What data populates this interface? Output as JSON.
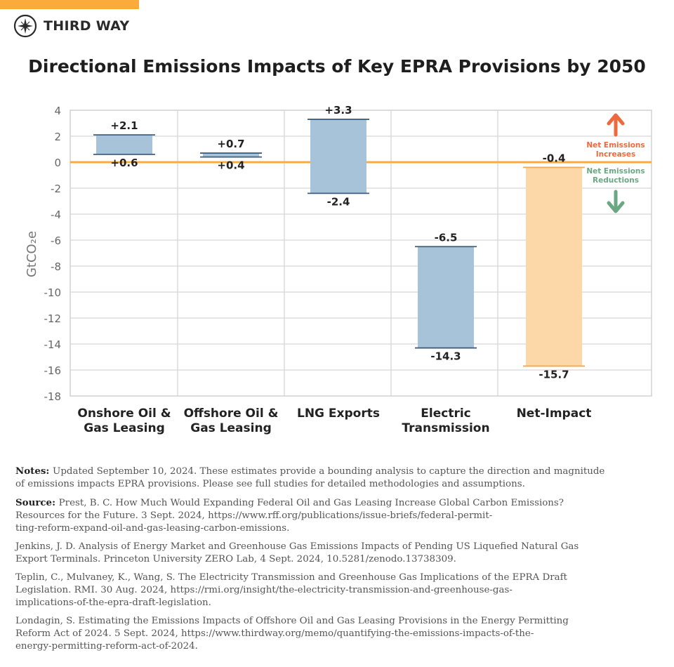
{
  "brand": {
    "name": "THIRD WAY",
    "accent": "#fbab3b",
    "icon": "compass-icon"
  },
  "title": "Directional Emissions Impacts of Key EPRA Provisions by 2050",
  "chart_data": {
    "type": "floating-bar",
    "title": "Directional Emissions Impacts of Key EPRA Provisions by 2050",
    "ylabel": "GtCO₂e",
    "ylim": [
      -18,
      4
    ],
    "yticks": [
      4,
      2,
      0,
      -2,
      -4,
      -6,
      -8,
      -10,
      -12,
      -14,
      -16,
      -18
    ],
    "grid": true,
    "categories": [
      {
        "label": [
          "Onshore Oil &",
          "Gas Leasing"
        ],
        "low": 0.6,
        "high": 2.1,
        "low_label": "+0.6",
        "high_label": "+2.1",
        "color": "#a7c3d9"
      },
      {
        "label": [
          "Offshore Oil &",
          "Gas Leasing"
        ],
        "low": 0.4,
        "high": 0.7,
        "low_label": "+0.4",
        "high_label": "+0.7",
        "color": "#a7c3d9"
      },
      {
        "label": [
          "LNG Exports"
        ],
        "low": -2.4,
        "high": 3.3,
        "low_label": "-2.4",
        "high_label": "+3.3",
        "color": "#a7c3d9"
      },
      {
        "label": [
          "Electric",
          "Transmission"
        ],
        "low": -14.3,
        "high": -6.5,
        "low_label": "-14.3",
        "high_label": "-6.5",
        "color": "#a7c3d9"
      },
      {
        "label": [
          "Net-Impact"
        ],
        "low": -15.7,
        "high": -0.4,
        "low_label": "-15.7",
        "high_label": "-0.4",
        "color": "#fcd7a8"
      }
    ],
    "zero_line_color": "#fbab3b",
    "annotations": {
      "increase": {
        "lines": [
          "Net Emissions",
          "Increases"
        ],
        "color": "#ec6a3c",
        "icon": "arrow-up-icon"
      },
      "reduction": {
        "lines": [
          "Net Emissions",
          "Reductions"
        ],
        "color": "#6aa884",
        "icon": "arrow-down-icon"
      }
    }
  },
  "notes": [
    {
      "label": "Notes:",
      "lines": [
        "Updated September 10, 2024. These estimates provide a bounding analysis to capture the direction and magnitude",
        "of emissions impacts EPRA provisions. Please see full studies for detailed methodologies and assumptions."
      ]
    },
    {
      "label": "Source:",
      "lines": [
        "Prest, B. C. How Much Would Expanding Federal Oil and Gas Leasing Increase Global Carbon Emissions?",
        "Resources for the Future. 3 Sept. 2024, https://www.rff.org/publications/issue-briefs/federal-permit-",
        "ting-reform-expand-oil-and-gas-leasing-carbon-emissions."
      ]
    },
    {
      "label": "",
      "lines": [
        "Jenkins, J. D. Analysis of Energy Market and Greenhouse Gas Emissions Impacts of Pending US Liquefied Natural Gas",
        "Export Terminals. Princeton University ZERO Lab, 4 Sept. 2024, 10.5281/zenodo.13738309."
      ]
    },
    {
      "label": "",
      "lines": [
        "Teplin, C., Mulvaney, K., Wang, S. The Electricity Transmission and Greenhouse Gas Implications of the EPRA Draft",
        "Legislation. RMI. 30 Aug. 2024, https://rmi.org/insight/the-electricity-transmission-and-greenhouse-gas-",
        "implications-of-the-epra-draft-legislation."
      ]
    },
    {
      "label": "",
      "lines": [
        "Londagin, S. Estimating the Emissions Impacts of Offshore Oil and Gas Leasing Provisions in the Energy Permitting",
        "Reform Act of 2024. 5 Sept. 2024, https://www.thirdway.org/memo/quantifying-the-emissions-impacts-of-the-",
        "energy-permitting-reform-act-of-2024."
      ]
    }
  ]
}
